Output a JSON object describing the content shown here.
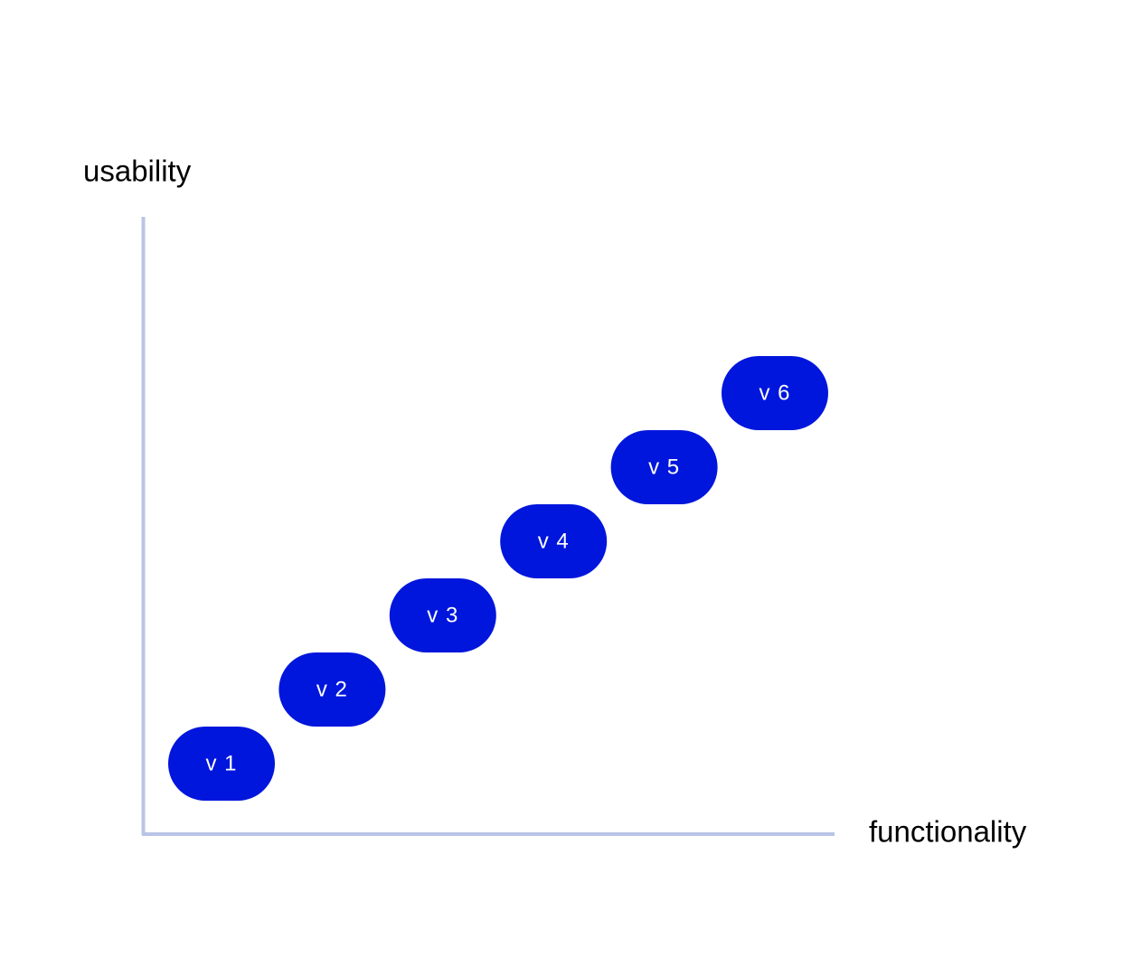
{
  "axes": {
    "y_label": "usability",
    "x_label": "functionality"
  },
  "nodes": [
    {
      "label": "v 1"
    },
    {
      "label": "v 2"
    },
    {
      "label": "v 3"
    },
    {
      "label": "v 4"
    },
    {
      "label": "v 5"
    },
    {
      "label": "v 6"
    }
  ]
}
